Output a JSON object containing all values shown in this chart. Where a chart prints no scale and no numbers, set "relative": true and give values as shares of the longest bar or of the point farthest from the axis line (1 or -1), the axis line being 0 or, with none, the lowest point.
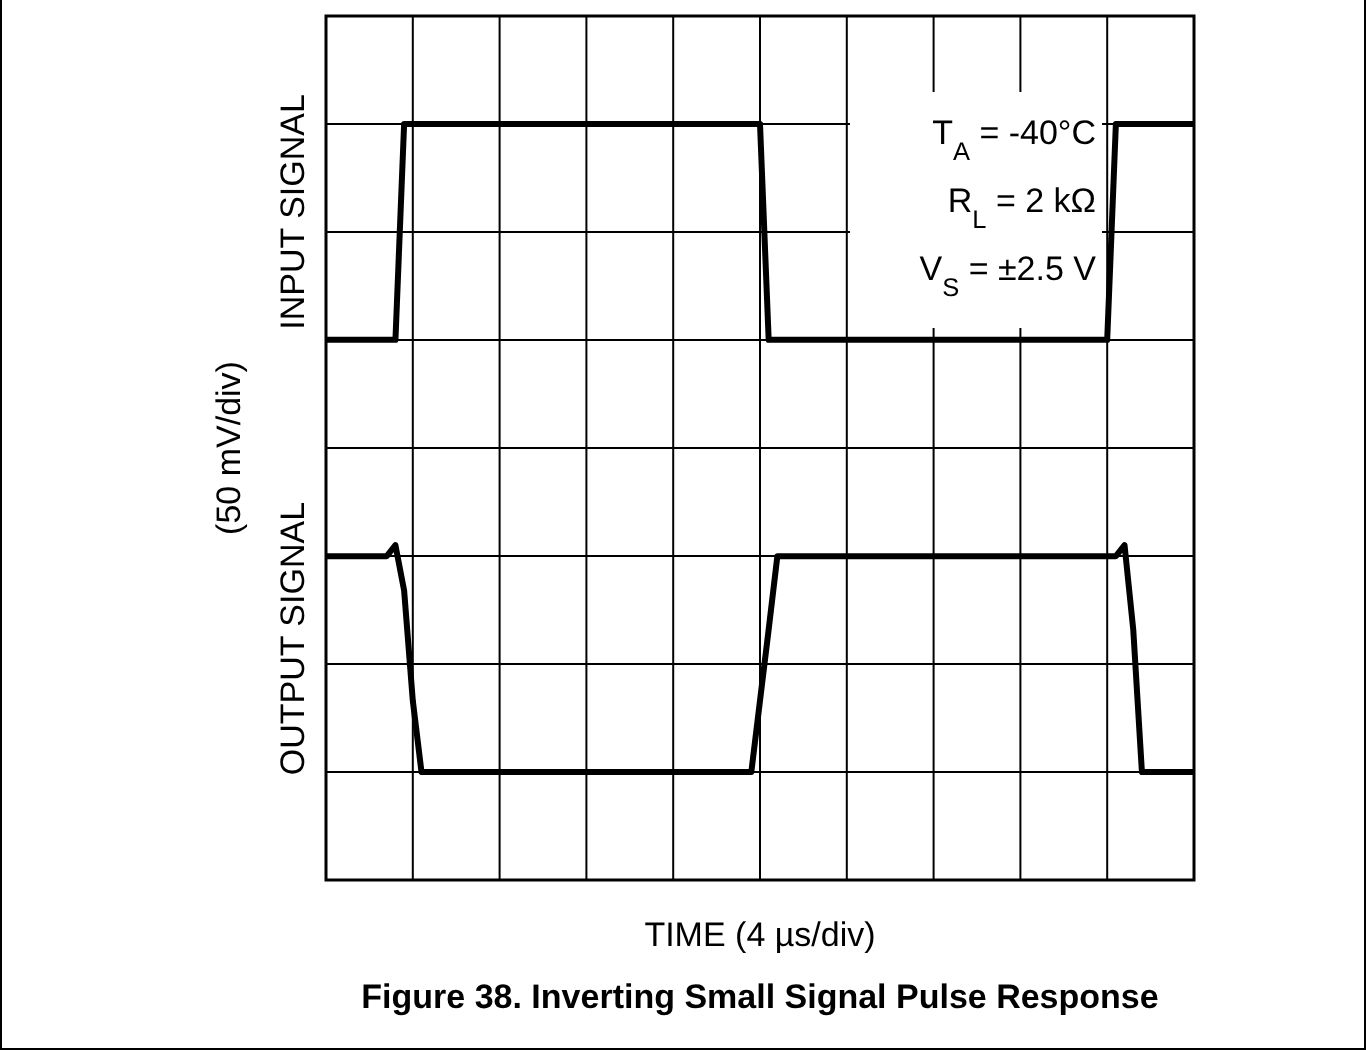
{
  "chart_data": {
    "type": "line",
    "title": "Figure 38. Inverting Small Signal Pulse Response",
    "xlabel": "TIME (4 µs/div)",
    "ylabel": "(50 mV/div)",
    "relative": true,
    "grid": true,
    "marker": "none",
    "line_style": "solid",
    "legend": false,
    "categories": [
      null,
      null,
      null,
      null,
      null,
      null,
      null,
      null,
      null,
      null,
      null,
      null,
      null,
      null,
      null,
      null,
      null,
      null,
      null,
      null,
      null,
      null,
      null,
      null,
      null,
      null,
      null,
      null,
      null,
      null,
      null,
      null,
      null,
      null,
      null,
      null,
      null,
      null,
      null,
      null,
      null,
      null,
      null,
      null,
      null,
      null,
      null,
      null,
      null,
      null,
      null,
      null,
      null,
      null,
      null,
      null,
      null,
      null,
      null,
      null,
      null,
      null,
      null,
      null,
      null,
      null,
      null,
      null,
      null,
      null,
      null,
      null,
      null,
      null,
      null,
      null,
      null,
      null,
      null,
      null,
      null,
      null,
      null,
      null,
      null,
      null,
      null,
      null,
      null,
      null,
      null,
      null,
      null,
      null,
      null,
      null,
      null,
      null,
      null,
      null,
      null
    ],
    "series": [
      {
        "name": "INPUT SIGNAL",
        "color": "#000000",
        "values": [
          0.667,
          0.667,
          0.667,
          0.667,
          0.667,
          0.667,
          0.667,
          0.667,
          0.667,
          1,
          1,
          1,
          1,
          1,
          1,
          1,
          1,
          1,
          1,
          1,
          1,
          1,
          1,
          1,
          1,
          1,
          1,
          1,
          1,
          1,
          1,
          1,
          1,
          1,
          1,
          1,
          1,
          1,
          1,
          1,
          1,
          1,
          1,
          1,
          1,
          1,
          1,
          1,
          1,
          1,
          1,
          0.667,
          0.667,
          0.667,
          0.667,
          0.667,
          0.667,
          0.667,
          0.667,
          0.667,
          0.667,
          0.667,
          0.667,
          0.667,
          0.667,
          0.667,
          0.667,
          0.667,
          0.667,
          0.667,
          0.667,
          0.667,
          0.667,
          0.667,
          0.667,
          0.667,
          0.667,
          0.667,
          0.667,
          0.667,
          0.667,
          0.667,
          0.667,
          0.667,
          0.667,
          0.667,
          0.667,
          0.667,
          0.667,
          0.667,
          0.667,
          1,
          1,
          1,
          1,
          1,
          1,
          1,
          1,
          1,
          1
        ]
      },
      {
        "name": "OUTPUT SIGNAL",
        "color": "#000000",
        "values": [
          0.333,
          0.333,
          0.333,
          0.333,
          0.333,
          0.333,
          0.333,
          0.333,
          0.35,
          0.28,
          0.11,
          0,
          0,
          0,
          0,
          0,
          0,
          0,
          0,
          0,
          0,
          0,
          0,
          0,
          0,
          0,
          0,
          0,
          0,
          0,
          0,
          0,
          0,
          0,
          0,
          0,
          0,
          0,
          0,
          0,
          0,
          0,
          0,
          0,
          0,
          0,
          0,
          0,
          0,
          0,
          0.11,
          0.22,
          0.333,
          0.333,
          0.333,
          0.333,
          0.333,
          0.333,
          0.333,
          0.333,
          0.333,
          0.333,
          0.333,
          0.333,
          0.333,
          0.333,
          0.333,
          0.333,
          0.333,
          0.333,
          0.333,
          0.333,
          0.333,
          0.333,
          0.333,
          0.333,
          0.333,
          0.333,
          0.333,
          0.333,
          0.333,
          0.333,
          0.333,
          0.333,
          0.333,
          0.333,
          0.333,
          0.333,
          0.333,
          0.333,
          0.333,
          0.333,
          0.35,
          0.22,
          0,
          0,
          0,
          0,
          0,
          0,
          0
        ]
      }
    ],
    "annotations": [
      "T$_{A}$ = -40°C",
      "R$_{L}$ = 2 kΩ",
      "V$_{S}$ = ±2.5 V"
    ]
  }
}
